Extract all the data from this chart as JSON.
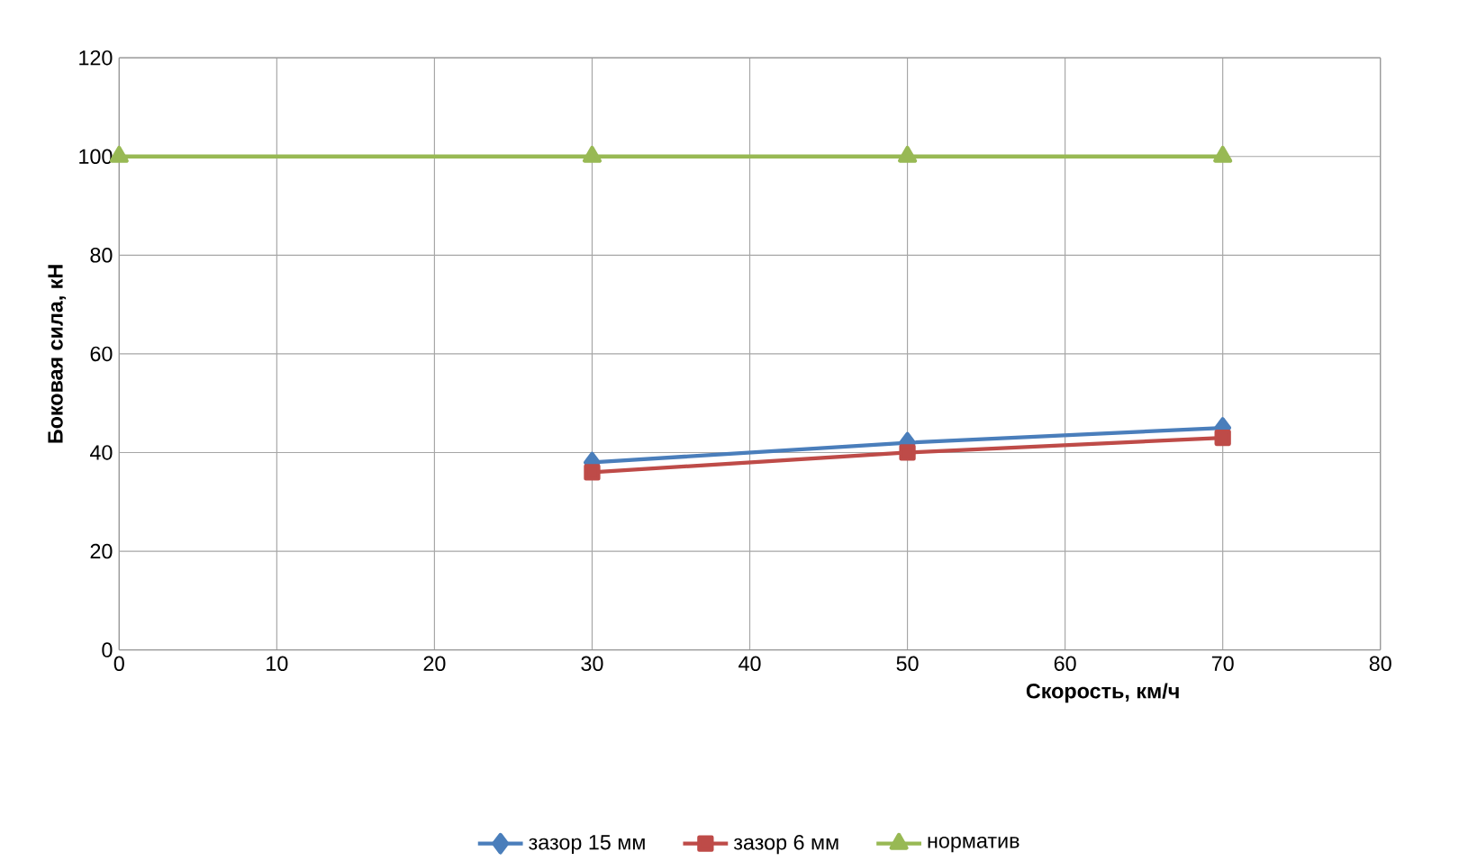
{
  "chart_data": {
    "type": "line",
    "xlabel": "Скорость, км/ч",
    "ylabel": "Боковая сила, кН",
    "xlim": [
      0,
      80
    ],
    "xticks": [
      0,
      10,
      20,
      30,
      40,
      50,
      60,
      70,
      80
    ],
    "ylim": [
      0,
      120
    ],
    "yticks": [
      0,
      20,
      40,
      60,
      80,
      100,
      120
    ],
    "grid": true,
    "legend": "bottom",
    "series": [
      {
        "name": "зазор 15 мм",
        "color": "#4a7ebb",
        "marker": "diamond",
        "x": [
          30,
          50,
          70
        ],
        "values": [
          38,
          42,
          45
        ]
      },
      {
        "name": "зазор 6 мм",
        "color": "#be4b48",
        "marker": "square",
        "x": [
          30,
          50,
          70
        ],
        "values": [
          36,
          40,
          43
        ]
      },
      {
        "name": "норматив",
        "color": "#98b954",
        "marker": "triangle",
        "x": [
          0,
          30,
          50,
          70
        ],
        "values": [
          100,
          100,
          100,
          100
        ]
      }
    ]
  }
}
